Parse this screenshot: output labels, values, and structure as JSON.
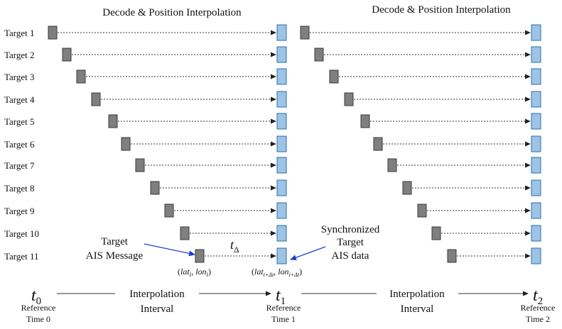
{
  "panels": [
    {
      "title": "Decode & Position Interpolation"
    },
    {
      "title": "Decode & Position Interpolation"
    }
  ],
  "targets": [
    "Target 1",
    "Target 2",
    "Target 3",
    "Target 4",
    "Target 5",
    "Target 6",
    "Target 7",
    "Target 8",
    "Target 9",
    "Target 10",
    "Target 11"
  ],
  "annotations": {
    "ais_message": [
      "Target",
      "AIS Message"
    ],
    "synchronized": [
      "Synchronized",
      "Target",
      "AIS data"
    ],
    "t_delta": {
      "base": "t",
      "sub": "Δ"
    },
    "input_coords": {
      "open": "(",
      "lat": "lat",
      "lat_sub": "i",
      "comma": ", ",
      "lon": "lon",
      "lon_sub": "i",
      "close": ")"
    },
    "output_coords": {
      "open": "(",
      "lat": "lat",
      "lat_sub": "i+Δt",
      "comma": ",  ",
      "lon": "lon",
      "lon_sub": "i+Δt",
      "close": ")"
    }
  },
  "timeline": {
    "times": [
      {
        "base": "t",
        "sub": "0",
        "label": [
          "Reference",
          "Time 0"
        ]
      },
      {
        "base": "t",
        "sub": "1",
        "label": [
          "Reference",
          "Time 1"
        ]
      },
      {
        "base": "t",
        "sub": "2",
        "label": [
          "Reference",
          "Time 2"
        ]
      }
    ],
    "intervals": [
      {
        "label": [
          "Interpolation",
          "Interval"
        ]
      },
      {
        "label": [
          "Interpolation",
          "Interval"
        ]
      }
    ]
  },
  "colors": {
    "message_box": "#7f7f7f",
    "sync_box": "#9dc3e6",
    "annotation_arrow": "#1f3fd0"
  }
}
